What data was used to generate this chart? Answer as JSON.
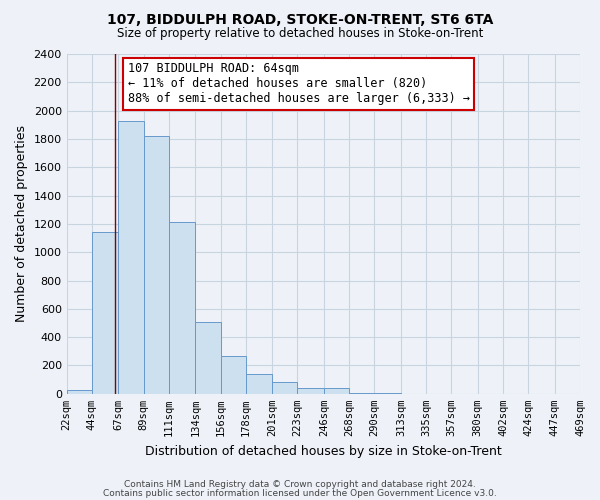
{
  "title": "107, BIDDULPH ROAD, STOKE-ON-TRENT, ST6 6TA",
  "subtitle": "Size of property relative to detached houses in Stoke-on-Trent",
  "xlabel": "Distribution of detached houses by size in Stoke-on-Trent",
  "ylabel": "Number of detached properties",
  "bin_edges": [
    22,
    44,
    67,
    89,
    111,
    134,
    156,
    178,
    201,
    223,
    246,
    268,
    290,
    313,
    335,
    357,
    380,
    402,
    424,
    447,
    469
  ],
  "bin_labels": [
    "22sqm",
    "44sqm",
    "67sqm",
    "89sqm",
    "111sqm",
    "134sqm",
    "156sqm",
    "178sqm",
    "201sqm",
    "223sqm",
    "246sqm",
    "268sqm",
    "290sqm",
    "313sqm",
    "335sqm",
    "357sqm",
    "380sqm",
    "402sqm",
    "424sqm",
    "447sqm",
    "469sqm"
  ],
  "bar_heights": [
    25,
    1140,
    1930,
    1820,
    1210,
    510,
    265,
    140,
    85,
    40,
    40,
    5,
    5,
    0,
    0,
    0,
    0,
    0,
    0,
    0
  ],
  "bar_color": "#cce0f0",
  "bar_edge_color": "#6699cc",
  "property_line_x": 64,
  "property_line_label": "107 BIDDULPH ROAD: 64sqm",
  "annotation_line1": "← 11% of detached houses are smaller (820)",
  "annotation_line2": "88% of semi-detached houses are larger (6,333) →",
  "annotation_box_facecolor": "#ffffff",
  "annotation_box_edgecolor": "#cc0000",
  "vline_color": "#880000",
  "ylim": [
    0,
    2400
  ],
  "yticks": [
    0,
    200,
    400,
    600,
    800,
    1000,
    1200,
    1400,
    1600,
    1800,
    2000,
    2200,
    2400
  ],
  "grid_color": "#c8d4e0",
  "footer_line1": "Contains HM Land Registry data © Crown copyright and database right 2024.",
  "footer_line2": "Contains public sector information licensed under the Open Government Licence v3.0.",
  "bg_color": "#eef2f8",
  "plot_bg_color": "#eef2f8"
}
